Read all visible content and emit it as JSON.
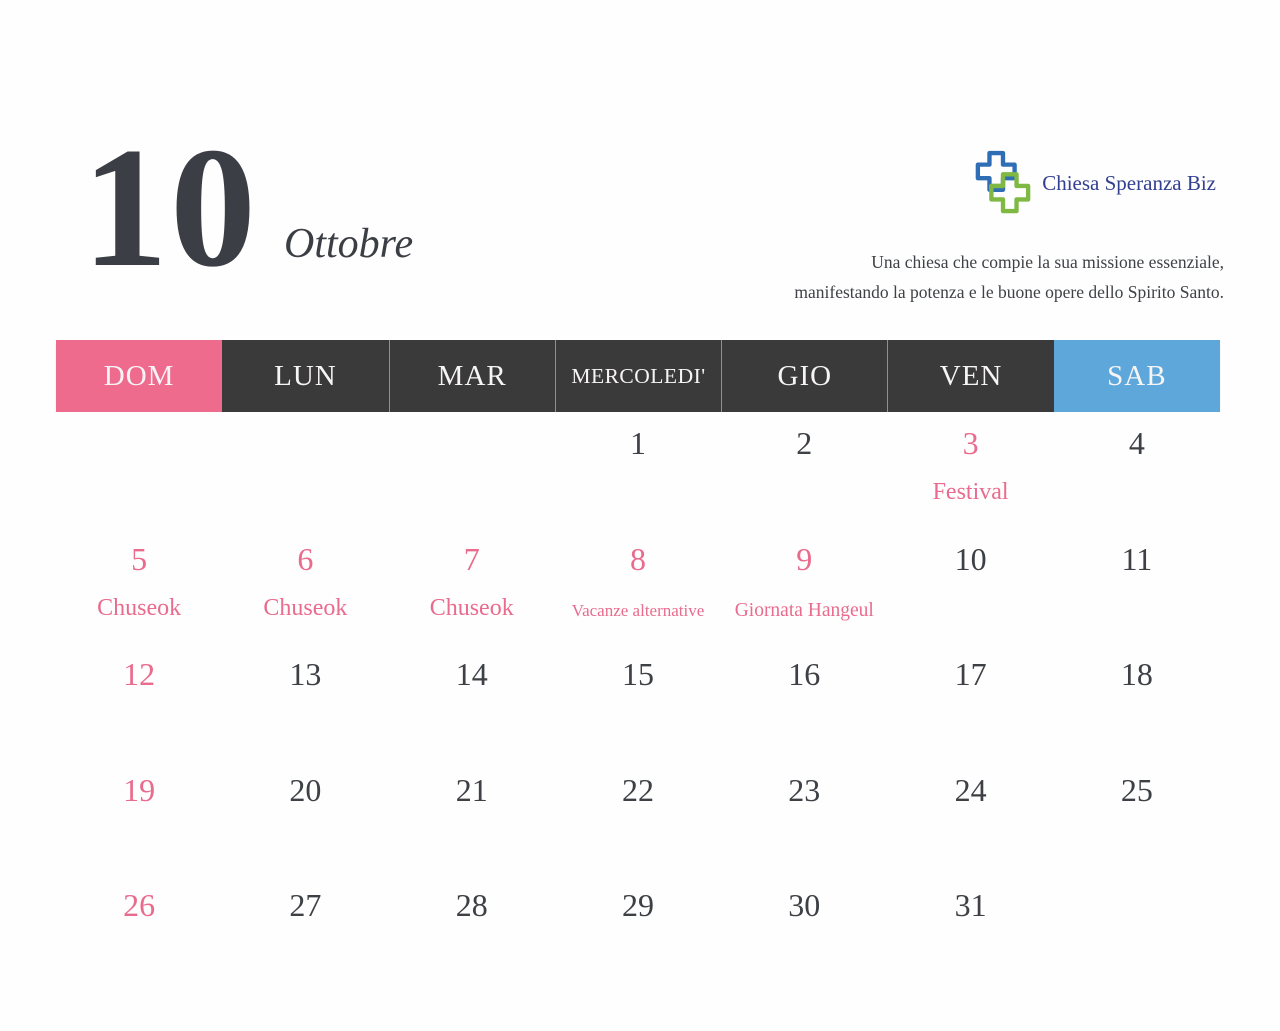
{
  "header": {
    "month_number": "10",
    "month_name": "Ottobre",
    "logo": {
      "name": "Chiesa Speranza Biz",
      "icon": "interlocking-crosses-icon",
      "icon_blue": "#2f6eb5",
      "icon_green": "#7fb843",
      "text_color": "#323f8e"
    },
    "tagline_line1": "Una chiesa che compie la sua missione essenziale,",
    "tagline_line2": "manifestando la potenza e le buone opere dello Spirito Santo."
  },
  "colors": {
    "accent_pink": "#ee6b8e",
    "accent_blue": "#5ea7db",
    "header_dark": "#3a3a3a",
    "text_dark": "#3d4045",
    "highlight_text": "#e96b8d"
  },
  "weekdays": [
    {
      "label": "DOM",
      "type": "sunday"
    },
    {
      "label": "LUN",
      "type": "weekday"
    },
    {
      "label": "MAR",
      "type": "weekday"
    },
    {
      "label": "MERCOLEDI'",
      "type": "weekday",
      "small": true
    },
    {
      "label": "GIO",
      "type": "weekday"
    },
    {
      "label": "VEN",
      "type": "weekday"
    },
    {
      "label": "SAB",
      "type": "saturday"
    }
  ],
  "calendar": {
    "weeks": [
      [
        {
          "day": ""
        },
        {
          "day": ""
        },
        {
          "day": ""
        },
        {
          "day": "1"
        },
        {
          "day": "2"
        },
        {
          "day": "3",
          "highlight": true,
          "event": "Festival"
        },
        {
          "day": "4"
        }
      ],
      [
        {
          "day": "5",
          "highlight": true,
          "event": "Chuseok"
        },
        {
          "day": "6",
          "highlight": true,
          "event": "Chuseok"
        },
        {
          "day": "7",
          "highlight": true,
          "event": "Chuseok"
        },
        {
          "day": "8",
          "highlight": true,
          "event": "Vacanze alternative",
          "event_size": "xsmall"
        },
        {
          "day": "9",
          "highlight": true,
          "event": "Giornata Hangeul",
          "event_size": "small"
        },
        {
          "day": "10"
        },
        {
          "day": "11"
        }
      ],
      [
        {
          "day": "12",
          "highlight": true
        },
        {
          "day": "13"
        },
        {
          "day": "14"
        },
        {
          "day": "15"
        },
        {
          "day": "16"
        },
        {
          "day": "17"
        },
        {
          "day": "18"
        }
      ],
      [
        {
          "day": "19",
          "highlight": true
        },
        {
          "day": "20"
        },
        {
          "day": "21"
        },
        {
          "day": "22"
        },
        {
          "day": "23"
        },
        {
          "day": "24"
        },
        {
          "day": "25"
        }
      ],
      [
        {
          "day": "26",
          "highlight": true
        },
        {
          "day": "27"
        },
        {
          "day": "28"
        },
        {
          "day": "29"
        },
        {
          "day": "30"
        },
        {
          "day": "31"
        },
        {
          "day": ""
        }
      ]
    ]
  }
}
